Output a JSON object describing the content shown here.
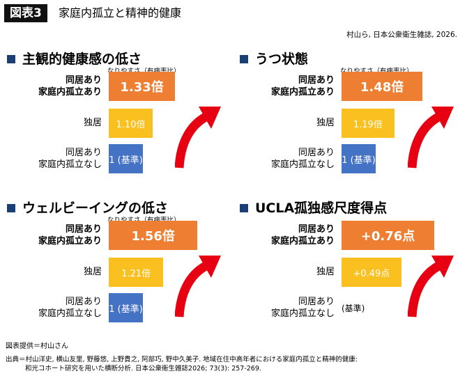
{
  "header": {
    "figure_label": "図表3",
    "figure_title": "家庭内孤立と精神的健康",
    "citation": "村山ら, 日本公衆衛生雑誌, 2026."
  },
  "colors": {
    "orange": "#ee7e32",
    "yellow": "#fac020",
    "blue": "#4472c4",
    "arrow": "#e60012"
  },
  "chart_data": [
    {
      "type": "bar",
      "orientation": "horizontal",
      "title": "主観的健康感の低さ",
      "unit_label": "なりやすさ（有病率比）",
      "categories": [
        {
          "line1": "同居あり",
          "line2": "家庭内孤立あり"
        },
        {
          "line1": "独居",
          "line2": ""
        },
        {
          "line1": "同居あり",
          "line2": "家庭内孤立なし"
        }
      ],
      "values": [
        1.33,
        1.1,
        1.0
      ],
      "value_labels": [
        "1.33倍",
        "1.10倍",
        "1 (基準)"
      ],
      "xlim": [
        0.65,
        1.65
      ]
    },
    {
      "type": "bar",
      "orientation": "horizontal",
      "title": "うつ状態",
      "unit_label": "なりやすさ（有病率比）",
      "categories": [
        {
          "line1": "同居あり",
          "line2": "家庭内孤立あり"
        },
        {
          "line1": "独居",
          "line2": ""
        },
        {
          "line1": "同居あり",
          "line2": "家庭内孤立なし"
        }
      ],
      "values": [
        1.48,
        1.19,
        1.0
      ],
      "value_labels": [
        "1.48倍",
        "1.19倍",
        "1 (基準)"
      ],
      "xlim": [
        0.65,
        1.65
      ]
    },
    {
      "type": "bar",
      "orientation": "horizontal",
      "title": "ウェルビーイングの低さ",
      "unit_label": "なりやすさ（有病率比）",
      "categories": [
        {
          "line1": "同居あり",
          "line2": "家庭内孤立あり"
        },
        {
          "line1": "独居",
          "line2": ""
        },
        {
          "line1": "同居あり",
          "line2": "家庭内孤立なし"
        }
      ],
      "values": [
        1.56,
        1.21,
        1.0
      ],
      "value_labels": [
        "1.56倍",
        "1.21倍",
        "1 (基準)"
      ],
      "xlim": [
        0.65,
        1.65
      ]
    },
    {
      "type": "bar",
      "orientation": "horizontal",
      "title": "UCLA孤独感尺度得点",
      "unit_label": "",
      "categories": [
        {
          "line1": "同居あり",
          "line2": "家庭内孤立あり"
        },
        {
          "line1": "独居",
          "line2": ""
        },
        {
          "line1": "同居あり",
          "line2": "家庭内孤立なし"
        }
      ],
      "values": [
        0.76,
        0.49,
        0
      ],
      "value_labels": [
        "+0.76点",
        "+0.49点",
        "(基準)"
      ],
      "xlim": [
        0,
        0.8
      ]
    }
  ],
  "footer": {
    "credit": "図表提供＝村山さん",
    "source_line1": "出典＝村山洋史, 横山友里, 野藤悠, 上野貴之, 阿部巧, 野中久美子. 地域在住中高年者における家庭内孤立と精神的健康:",
    "source_line2": "和光コホート研究を用いた横断分析. 日本公衆衛生雑誌2026; 73(3): 257-269."
  }
}
